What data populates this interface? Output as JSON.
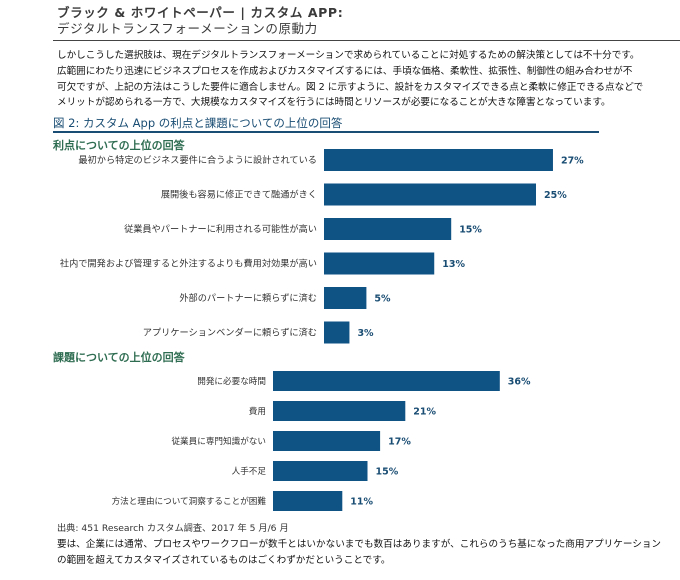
{
  "header": {
    "title_line1": "ブラック & ホワイトペーパー | カスタム APP:",
    "title_line2": "デジタルトランスフォーメーションの原動力"
  },
  "intro": {
    "lines": [
      "しかしこうした選択肢は、現在デジタルトランスフォーメーションで求められていることに対処するための解決策としては不十分です。",
      "広範囲にわたり迅速にビジネスプロセスを作成およびカスタマイズするには、手頃な価格、柔軟性、拡張性、制御性の組み合わせが不",
      "可欠ですが、上記の方法はこうした要件に適合しません。図 2 に示すように、設計をカスタマイズできる点と柔軟に修正できる点などで",
      "メリットが認められる一方で、大規模なカスタマイズを行うには時間とリソースが必要になることが大きな障害となっています。"
    ]
  },
  "colors": {
    "bar": "#0f5284",
    "section": "#2f6d52",
    "figure_title": "#1a4d73",
    "value_label": "#1a4d73"
  },
  "chart_data": [
    {
      "type": "bar",
      "orientation": "horizontal",
      "title": "図 2: カスタム App の利点と課題についての上位の回答",
      "subtitle": "利点についての上位の回答",
      "categories": [
        "最初から特定のビジネス要件に合うように設計されている",
        "展開後も容易に修正できて融通がきく",
        "従業員やパートナーに利用される可能性が高い",
        "社内で開発および管理すると外注するよりも費用対効果が高い",
        "外部のパートナーに頼らずに済む",
        "アプリケーションベンダーに頼らずに済む"
      ],
      "values": [
        27,
        25,
        15,
        13,
        5,
        3
      ],
      "value_labels": [
        "27%",
        "25%",
        "15%",
        "13%",
        "5%",
        "3%"
      ],
      "unit": "%"
    },
    {
      "type": "bar",
      "orientation": "horizontal",
      "subtitle": "課題についての上位の回答",
      "categories": [
        "開発に必要な時間",
        "費用",
        "従業員に専門知識がない",
        "人手不足",
        "方法と理由について洞察することが困難"
      ],
      "values": [
        36,
        21,
        17,
        15,
        11
      ],
      "value_labels": [
        "36%",
        "21%",
        "17%",
        "15%",
        "11%"
      ],
      "unit": "%"
    }
  ],
  "source": "出典: 451 Research カスタム調査、2017 年 5 月/6 月",
  "outro": {
    "lines": [
      "要は、企業には通常、プロセスやワークフローが数千とはいかないまでも数百はありますが、これらのうち基になった商用アプリケーション",
      "の範囲を超えてカスタマイズされているものはごくわずかだということです。"
    ]
  }
}
